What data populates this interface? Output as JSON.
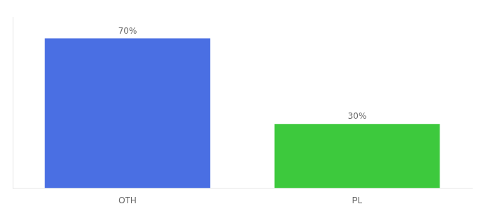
{
  "chart_data": {
    "type": "bar",
    "categories": [
      "OTH",
      "PL"
    ],
    "values": [
      70,
      30
    ],
    "colors": [
      "#4A6FE3",
      "#3DC93D"
    ],
    "ylim": [
      0,
      80
    ],
    "data_labels": true,
    "value_labels": [
      "70%",
      "30%"
    ],
    "tick_labels": "x",
    "grid": false
  }
}
